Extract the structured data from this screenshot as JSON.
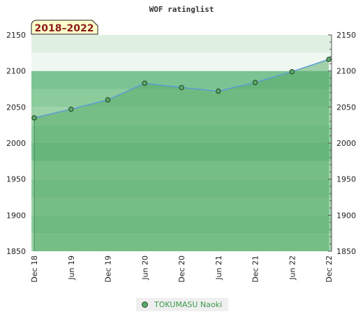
{
  "chart_data": {
    "type": "area",
    "title": "WOF ratinglist",
    "badge": "2018–2022",
    "x": [
      "Dec 18",
      "Jun 19",
      "Dec 19",
      "Jun 20",
      "Dec 20",
      "Jun 21",
      "Dec 21",
      "Jun 22",
      "Dec 22"
    ],
    "series": [
      {
        "name": "TOKUMASU Naoki",
        "values": [
          2035,
          2047,
          2060,
          2083,
          2077,
          2072,
          2084,
          2099,
          2116
        ]
      }
    ],
    "ylim": [
      1850,
      2150
    ],
    "yticks": [
      1850,
      1900,
      1950,
      2000,
      2050,
      2100,
      2150
    ],
    "grid": true,
    "legend": "bottom",
    "colors": {
      "line": "#5b9bd5",
      "fill": "rgba(80,170,100,0.5)",
      "marker": "#5aab6a",
      "badge_bg": "#ffffcc",
      "badge_text": "#8b1a1a",
      "legend_text": "#3a9a4a"
    }
  }
}
